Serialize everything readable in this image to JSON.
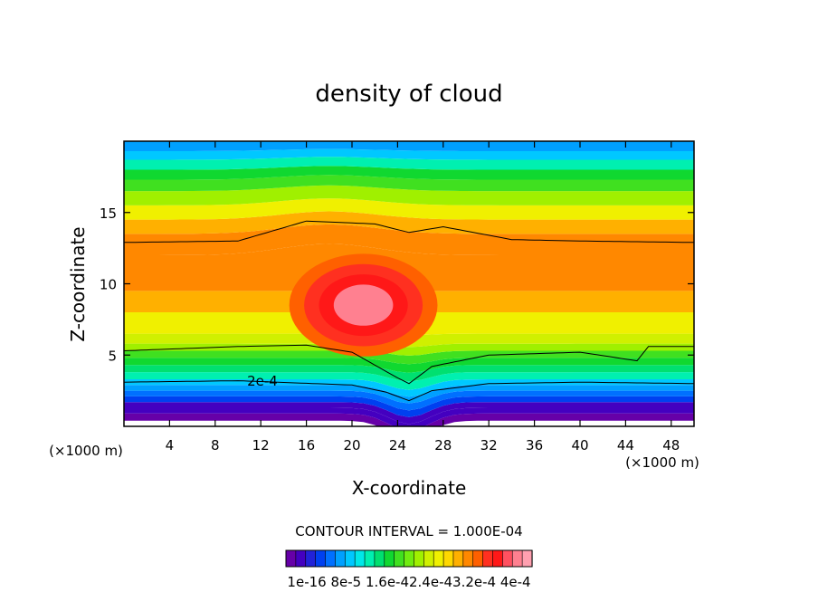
{
  "chart_data": {
    "type": "heatmap",
    "title": "density of cloud",
    "xlabel": "X-coordinate",
    "ylabel": "Z-coordinate",
    "x_unit": "(×1000 m)",
    "y_unit": "(×1000 m)",
    "xlim": [
      0,
      50
    ],
    "ylim": [
      0,
      20
    ],
    "xticks": [
      4,
      8,
      12,
      16,
      20,
      24,
      28,
      32,
      36,
      40,
      44,
      48
    ],
    "yticks": [
      5,
      10,
      15
    ],
    "contour_interval_text": "CONTOUR INTERVAL = 1.000E-04",
    "contour_label": "2e-4",
    "colorbar": {
      "tick_labels": [
        "1e-16",
        "8e-5",
        "1.6e-4",
        "2.4e-4",
        "3.2e-4",
        "4e-4"
      ],
      "tick_text": "1e-16 8e-5 1.6e-42.4e-43.2e-4 4e-4",
      "colors": [
        "#6600a8",
        "#4400c0",
        "#2222d8",
        "#0040f0",
        "#0070ff",
        "#00a0ff",
        "#00c8ff",
        "#00e8e8",
        "#00f0b0",
        "#00e070",
        "#10d830",
        "#40e020",
        "#70ec10",
        "#a0f000",
        "#d0f000",
        "#f0f000",
        "#ffd800",
        "#ffb000",
        "#ff8800",
        "#ff6000",
        "#ff3020",
        "#ff1818",
        "#ff5060",
        "#ff8090",
        "#ffa0b0"
      ],
      "range": [
        0,
        0.0004
      ]
    },
    "layer_edges_z": [
      0.4,
      0.9,
      1.3,
      1.7,
      2.1,
      2.5,
      2.9,
      3.3,
      3.8,
      4.3,
      4.8,
      5.3,
      5.8,
      6.5,
      8.0,
      9.5,
      12.0,
      13.5,
      14.5,
      15.5,
      16.5,
      17.3,
      18.0,
      18.7,
      19.3,
      20.0
    ],
    "layer_values": [
      0.0,
      2e-05,
      3e-05,
      5e-05,
      7e-05,
      9e-05,
      0.00011,
      0.00013,
      0.00015,
      0.00017,
      0.00019,
      0.00021,
      0.00023,
      0.00025,
      0.00028,
      0.0003,
      0.0003,
      0.00028,
      0.00025,
      0.00022,
      0.00019,
      0.00016,
      0.00013,
      0.0001,
      8e-05
    ],
    "core_center": [
      21,
      8.5
    ],
    "core_values": [
      0.00031,
      0.00033,
      0.00035,
      0.00037
    ],
    "contour_lines_z": [
      {
        "x": [
          0,
          10,
          16,
          22,
          25,
          28,
          34,
          40,
          50
        ],
        "z": [
          12.9,
          13.0,
          14.4,
          14.2,
          13.6,
          14.0,
          13.1,
          13.0,
          12.9
        ]
      },
      {
        "x": [
          0,
          10,
          16,
          20,
          24,
          25,
          27,
          32,
          40,
          45,
          46,
          50
        ],
        "z": [
          5.3,
          5.6,
          5.7,
          5.2,
          3.4,
          3.0,
          4.2,
          5.0,
          5.2,
          4.6,
          5.6,
          5.6
        ]
      },
      {
        "x": [
          0,
          10,
          20,
          23,
          25,
          27,
          32,
          40,
          50
        ],
        "z": [
          3.1,
          3.2,
          2.9,
          2.4,
          1.8,
          2.5,
          3.0,
          3.1,
          3.0
        ]
      }
    ]
  }
}
